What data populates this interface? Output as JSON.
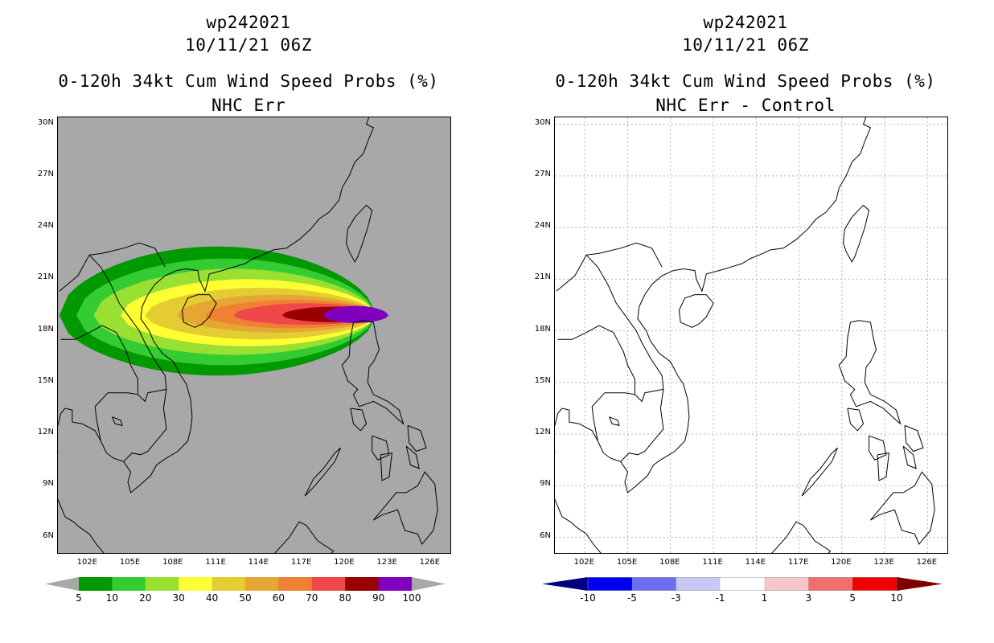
{
  "left": {
    "title_line1": "wp242021",
    "title_line2": "10/11/21 06Z",
    "title_line3": "0-120h 34kt Cum Wind Speed Probs (%)",
    "title_line4": "NHC Err",
    "colorbar": {
      "labels": [
        "5",
        "10",
        "20",
        "30",
        "40",
        "50",
        "60",
        "70",
        "80",
        "90",
        "100"
      ],
      "colors": [
        "#009900",
        "#33cc33",
        "#99e033",
        "#ffff33",
        "#e6cc33",
        "#e6a633",
        "#f08033",
        "#f04848",
        "#990000",
        "#8000c0"
      ],
      "under_color": "#a8a8a8",
      "over_color": "#a8a8a8"
    }
  },
  "right": {
    "title_line1": "wp242021",
    "title_line2": "10/11/21 06Z",
    "title_line3": "0-120h 34kt Cum Wind Speed Probs (%)",
    "title_line4": "NHC Err - Control",
    "colorbar": {
      "labels": [
        "-10",
        "-5",
        "-3",
        "-1",
        "1",
        "3",
        "5",
        "10"
      ],
      "colors": [
        "#0000a0",
        "#0000f0",
        "#6e6ef0",
        "#c8c8f5",
        "#ffffff",
        "#f5c8c8",
        "#f06e6e",
        "#f00000"
      ],
      "under_color": "#000080",
      "over_color": "#800000"
    }
  },
  "axes": {
    "lat_labels": [
      "30N",
      "27N",
      "24N",
      "21N",
      "18N",
      "15N",
      "12N",
      "9N",
      "6N"
    ],
    "lon_labels": [
      "102E",
      "105E",
      "108E",
      "111E",
      "114E",
      "117E",
      "120E",
      "123E",
      "126E"
    ],
    "lat_values": [
      30,
      27,
      24,
      21,
      18,
      15,
      12,
      9,
      6
    ],
    "lon_values": [
      102,
      105,
      108,
      111,
      114,
      117,
      120,
      123,
      126
    ],
    "lon_range": [
      99.9,
      127.5
    ],
    "lat_range": [
      5.0,
      30.4
    ]
  },
  "probability_field": {
    "description_levels": [
      5,
      10,
      20,
      30,
      40,
      50,
      60,
      70,
      80,
      90
    ],
    "center_lon_start": 106.5,
    "center_lon_end": 123.5,
    "center_lat": 18.9
  }
}
